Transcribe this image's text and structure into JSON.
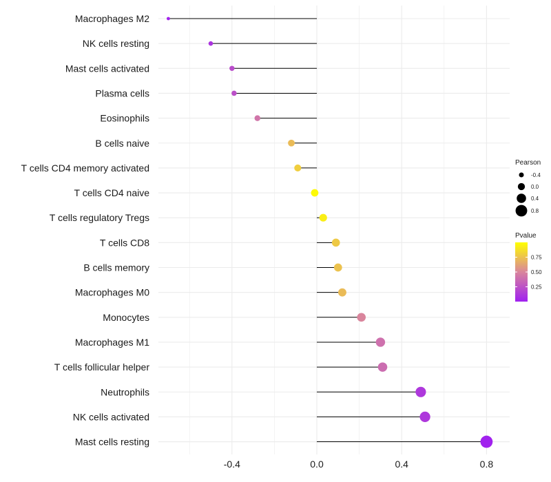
{
  "chart_data": {
    "type": "lollipop",
    "orientation": "horizontal",
    "categories": [
      "Macrophages M2",
      "NK cells resting",
      "Mast cells activated",
      "Plasma cells",
      "Eosinophils",
      "B cells naive",
      "T cells CD4 memory activated",
      "T cells CD4 naive",
      "T cells regulatory  Tregs ",
      "T cells CD8",
      "B cells memory",
      "Macrophages M0",
      "Monocytes",
      "Macrophages M1",
      "T cells follicular helper",
      "Neutrophils",
      "NK cells activated",
      "Mast cells resting"
    ],
    "values": [
      -0.7,
      -0.5,
      -0.4,
      -0.39,
      -0.28,
      -0.12,
      -0.09,
      -0.01,
      0.03,
      0.09,
      0.1,
      0.12,
      0.21,
      0.3,
      0.31,
      0.49,
      0.51,
      0.8
    ],
    "pvalues": [
      0.02,
      0.1,
      0.22,
      0.24,
      0.42,
      0.72,
      0.8,
      0.98,
      0.93,
      0.78,
      0.75,
      0.72,
      0.5,
      0.4,
      0.38,
      0.12,
      0.12,
      0.01
    ],
    "xlim": [
      -0.8,
      0.8
    ],
    "xticks": [
      -0.4,
      0.0,
      0.4,
      0.8
    ],
    "xtick_labels": [
      "-0.4",
      "0.0",
      "0.4",
      "0.8"
    ],
    "size_legend": {
      "title": "Pearson",
      "values": [
        -0.4,
        0.0,
        0.4,
        0.8
      ],
      "labels": [
        "-0.4",
        "0.0",
        "0.4",
        "0.8"
      ]
    },
    "color_legend": {
      "title": "Pvalue",
      "range": [
        0.0,
        1.0
      ],
      "ticks": [
        0.75,
        0.5,
        0.25
      ],
      "tick_labels": [
        "0.75",
        "0.50",
        "0.25"
      ],
      "low_color": "#a020f0",
      "mid_color": "#d9859c",
      "high_color": "#ffff00"
    },
    "grid": true,
    "line_color": "#000000",
    "grid_color": "#ebebeb"
  }
}
